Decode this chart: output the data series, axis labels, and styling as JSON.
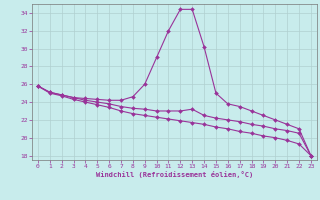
{
  "xlabel": "Windchill (Refroidissement éolien,°C)",
  "background_color": "#c8ecec",
  "grid_color": "#b0d0d0",
  "line_color": "#993399",
  "x": [
    0,
    1,
    2,
    3,
    4,
    5,
    6,
    7,
    8,
    9,
    10,
    11,
    12,
    13,
    14,
    15,
    16,
    17,
    18,
    19,
    20,
    21,
    22,
    23
  ],
  "line1": [
    25.8,
    25.1,
    24.8,
    24.5,
    24.4,
    24.3,
    24.2,
    24.2,
    24.6,
    26.0,
    29.0,
    32.0,
    34.4,
    34.4,
    30.2,
    25.0,
    23.8,
    23.5,
    23.0,
    22.5,
    22.0,
    21.5,
    21.0,
    18.0
  ],
  "line2": [
    25.8,
    25.1,
    24.8,
    24.5,
    24.2,
    24.0,
    23.8,
    23.5,
    23.3,
    23.2,
    23.0,
    23.0,
    23.0,
    23.2,
    22.5,
    22.2,
    22.0,
    21.8,
    21.5,
    21.3,
    21.0,
    20.8,
    20.5,
    18.0
  ],
  "line3": [
    25.8,
    25.0,
    24.7,
    24.3,
    24.0,
    23.7,
    23.4,
    23.0,
    22.7,
    22.5,
    22.3,
    22.1,
    21.9,
    21.7,
    21.5,
    21.2,
    21.0,
    20.7,
    20.5,
    20.2,
    20.0,
    19.7,
    19.3,
    18.0
  ],
  "ylim": [
    17.5,
    35.0
  ],
  "yticks": [
    18,
    20,
    22,
    24,
    26,
    28,
    30,
    32,
    34
  ],
  "xlim": [
    -0.5,
    23.5
  ],
  "xticks": [
    0,
    1,
    2,
    3,
    4,
    5,
    6,
    7,
    8,
    9,
    10,
    11,
    12,
    13,
    14,
    15,
    16,
    17,
    18,
    19,
    20,
    21,
    22,
    23
  ]
}
